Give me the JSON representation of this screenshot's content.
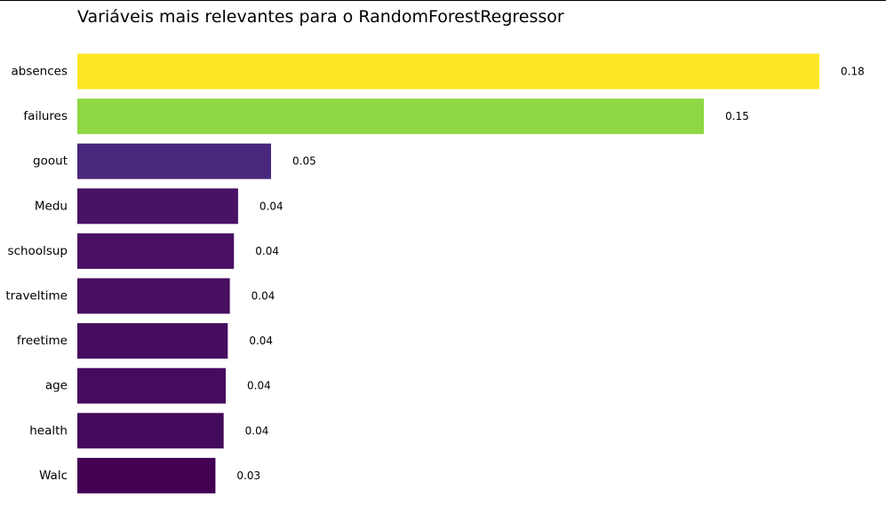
{
  "chart_data": {
    "type": "bar",
    "orientation": "horizontal",
    "title": "Variáveis mais relevantes para o RandomForestRegressor",
    "xlabel": "",
    "ylabel": "",
    "categories": [
      "absences",
      "failures",
      "goout",
      "Medu",
      "schoolsup",
      "traveltime",
      "freetime",
      "age",
      "health",
      "Walc"
    ],
    "values": [
      0.18,
      0.152,
      0.047,
      0.039,
      0.038,
      0.037,
      0.0365,
      0.036,
      0.0355,
      0.0335
    ],
    "value_labels": [
      "0.18",
      "0.15",
      "0.05",
      "0.04",
      "0.04",
      "0.04",
      "0.04",
      "0.04",
      "0.04",
      "0.03"
    ],
    "colors": [
      "#fde725",
      "#8fd744",
      "#48287c",
      "#4a1265",
      "#4a1063",
      "#470e61",
      "#460d5f",
      "#450b5d",
      "#440a5b",
      "#440154"
    ],
    "xlim": [
      0,
      0.18
    ],
    "grid": false,
    "axes_visible": false,
    "legend": "none"
  }
}
